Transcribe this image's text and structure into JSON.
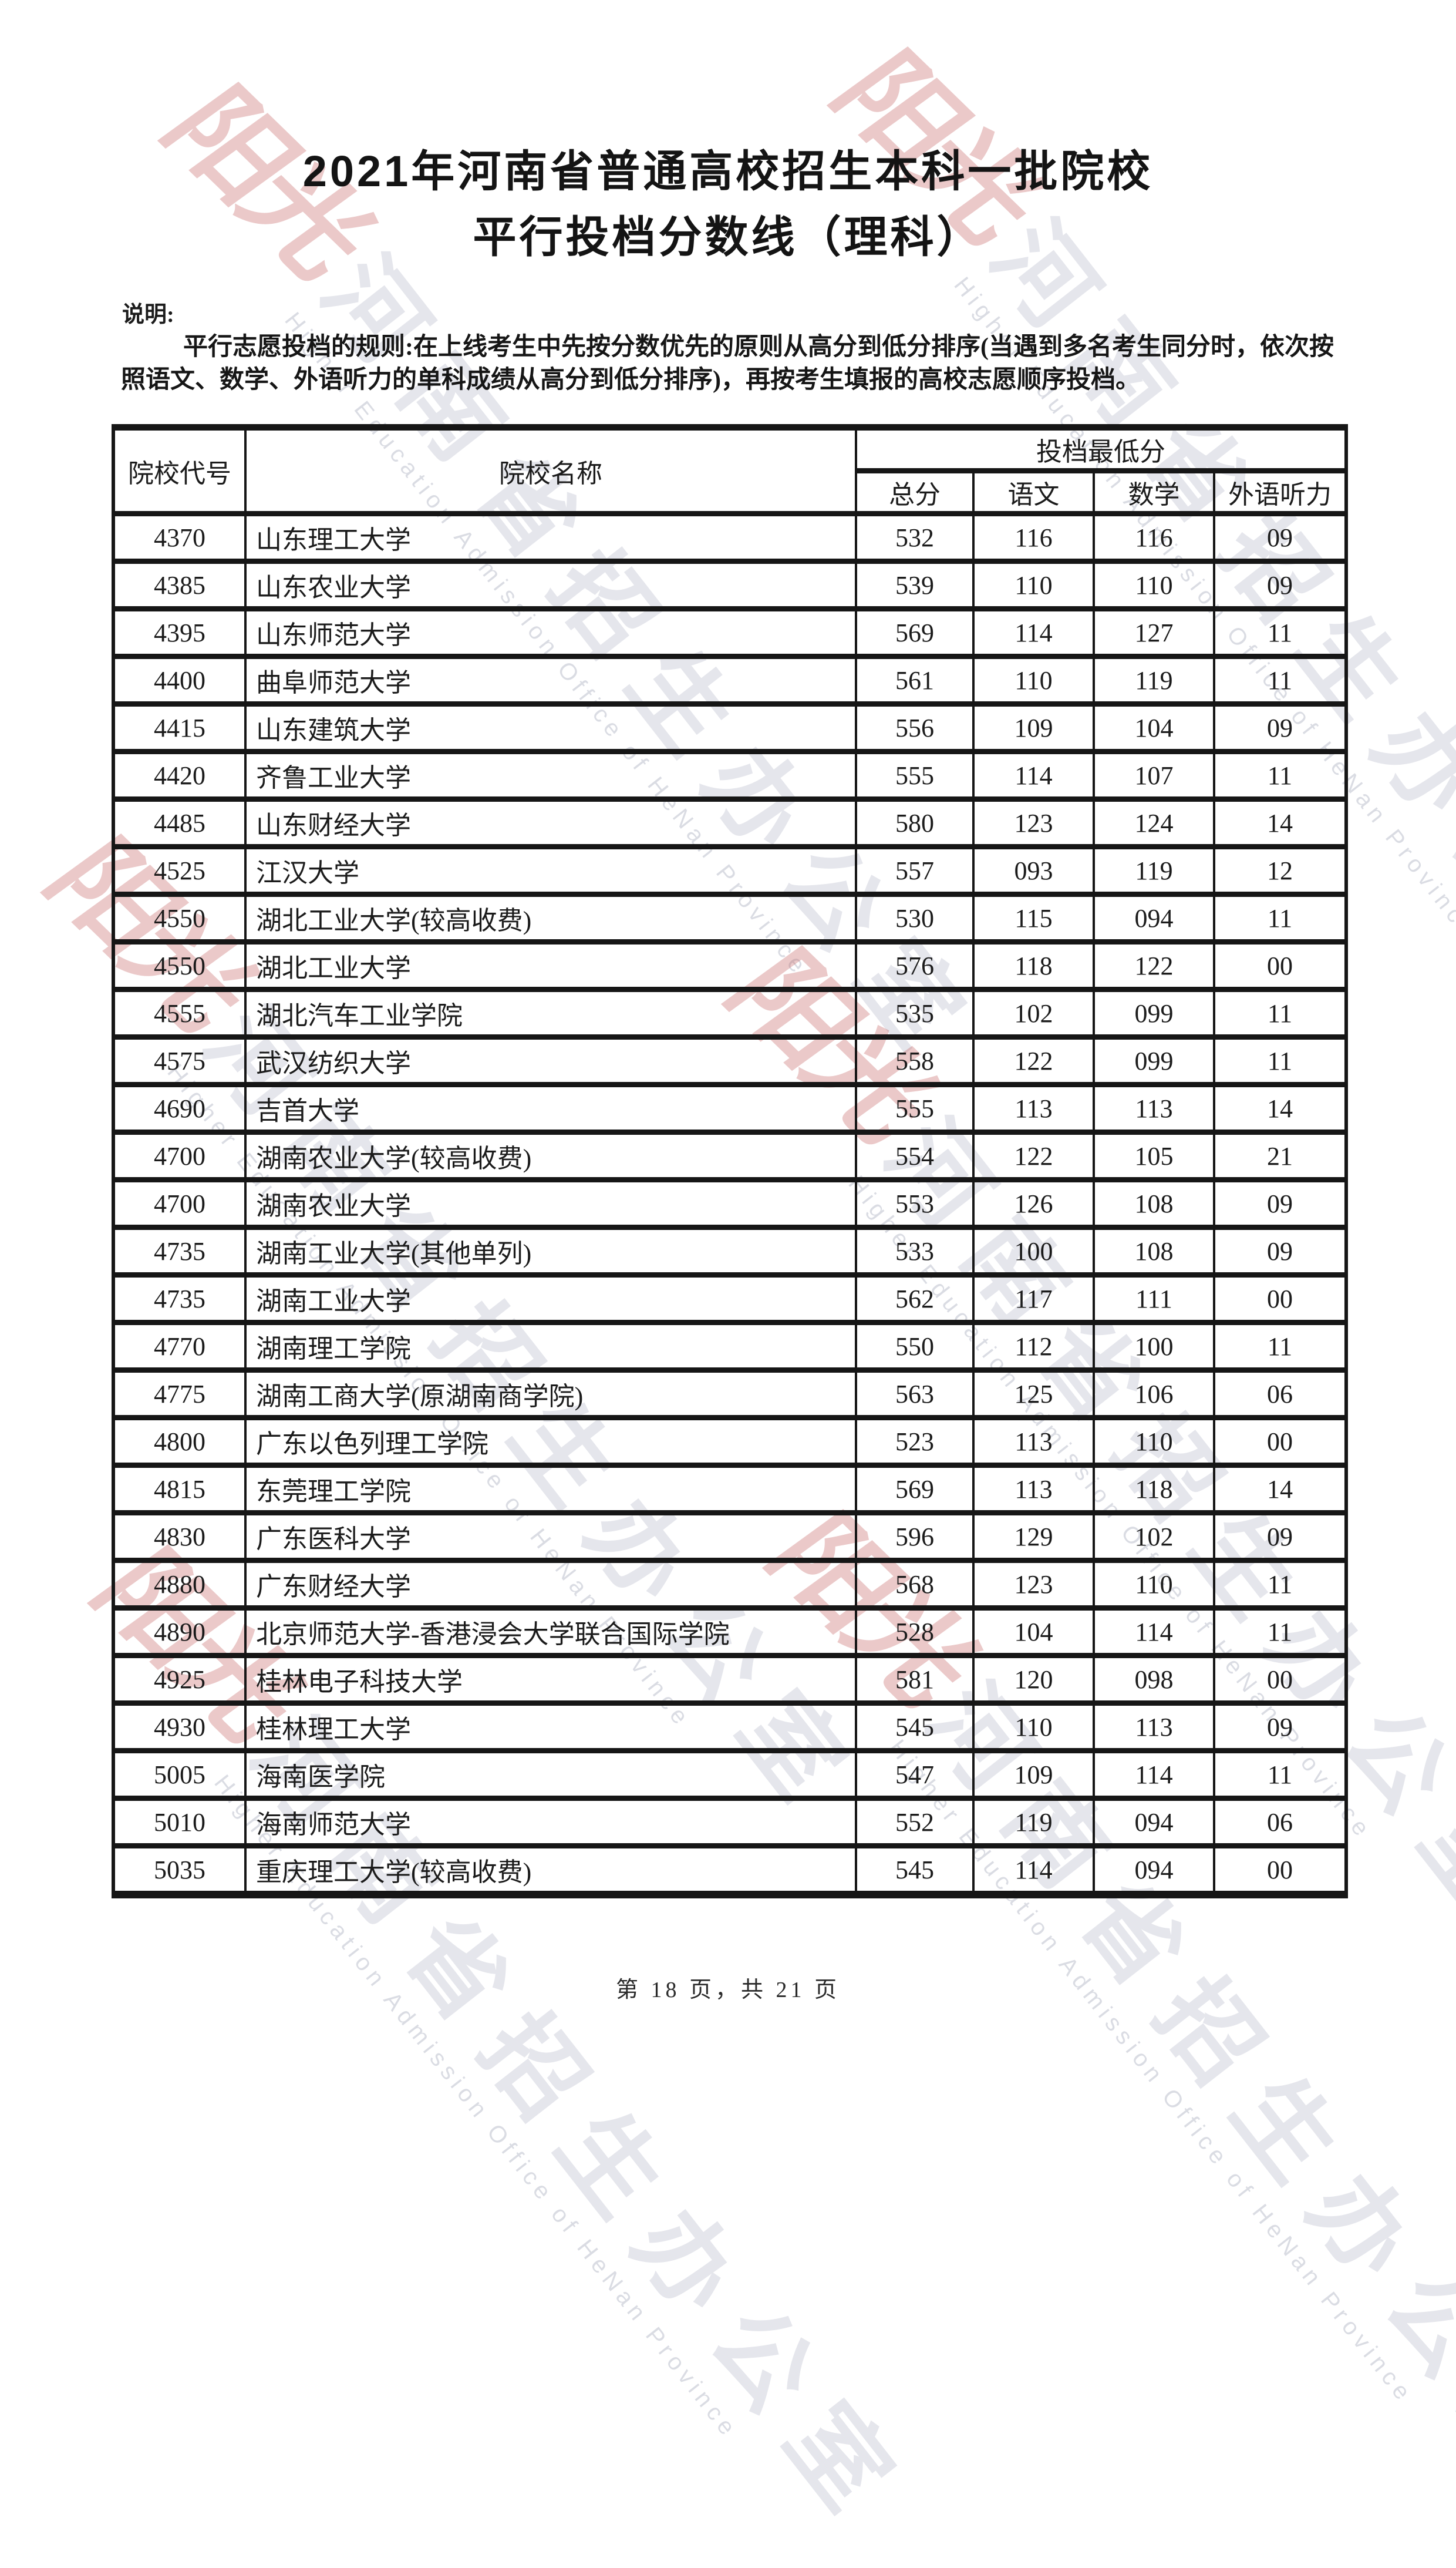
{
  "page": {
    "title_line1": "2021年河南省普通高校招生本科一批院校",
    "title_line2": "平行投档分数线（理科）",
    "note_label": "说明:",
    "note_line1": "平行志愿投档的规则:在上线考生中先按分数优先的原则从高分到低分排序(当遇到多名考生同分时，依次按",
    "note_line2": "照语文、数学、外语听力的单科成绩从高分到低分排序)，再按考生填报的高校志愿顺序投档。",
    "footer": "第 18 页，共 21 页"
  },
  "watermark": {
    "logo_text": "阳光",
    "cn_text": "河南省招生办公室",
    "en_text": "Higher Education Admission Office of HeNan Province"
  },
  "table": {
    "headers": {
      "col_code": "院校代号",
      "col_name": "院校名称",
      "col_group": "投档最低分",
      "col_total": "总分",
      "col_chinese": "语文",
      "col_math": "数学",
      "col_listening": "外语听力"
    },
    "rows": [
      {
        "code": "4370",
        "name": "山东理工大学",
        "total": "532",
        "chinese": "116",
        "math": "116",
        "listening": "09"
      },
      {
        "code": "4385",
        "name": "山东农业大学",
        "total": "539",
        "chinese": "110",
        "math": "110",
        "listening": "09"
      },
      {
        "code": "4395",
        "name": "山东师范大学",
        "total": "569",
        "chinese": "114",
        "math": "127",
        "listening": "11"
      },
      {
        "code": "4400",
        "name": "曲阜师范大学",
        "total": "561",
        "chinese": "110",
        "math": "119",
        "listening": "11"
      },
      {
        "code": "4415",
        "name": "山东建筑大学",
        "total": "556",
        "chinese": "109",
        "math": "104",
        "listening": "09"
      },
      {
        "code": "4420",
        "name": "齐鲁工业大学",
        "total": "555",
        "chinese": "114",
        "math": "107",
        "listening": "11"
      },
      {
        "code": "4485",
        "name": "山东财经大学",
        "total": "580",
        "chinese": "123",
        "math": "124",
        "listening": "14"
      },
      {
        "code": "4525",
        "name": "江汉大学",
        "total": "557",
        "chinese": "093",
        "math": "119",
        "listening": "12"
      },
      {
        "code": "4550",
        "name": "湖北工业大学(较高收费)",
        "total": "530",
        "chinese": "115",
        "math": "094",
        "listening": "11"
      },
      {
        "code": "4550",
        "name": "湖北工业大学",
        "total": "576",
        "chinese": "118",
        "math": "122",
        "listening": "00"
      },
      {
        "code": "4555",
        "name": "湖北汽车工业学院",
        "total": "535",
        "chinese": "102",
        "math": "099",
        "listening": "11"
      },
      {
        "code": "4575",
        "name": "武汉纺织大学",
        "total": "558",
        "chinese": "122",
        "math": "099",
        "listening": "11"
      },
      {
        "code": "4690",
        "name": "吉首大学",
        "total": "555",
        "chinese": "113",
        "math": "113",
        "listening": "14"
      },
      {
        "code": "4700",
        "name": "湖南农业大学(较高收费)",
        "total": "554",
        "chinese": "122",
        "math": "105",
        "listening": "21"
      },
      {
        "code": "4700",
        "name": "湖南农业大学",
        "total": "553",
        "chinese": "126",
        "math": "108",
        "listening": "09"
      },
      {
        "code": "4735",
        "name": "湖南工业大学(其他单列)",
        "total": "533",
        "chinese": "100",
        "math": "108",
        "listening": "09"
      },
      {
        "code": "4735",
        "name": "湖南工业大学",
        "total": "562",
        "chinese": "117",
        "math": "111",
        "listening": "00"
      },
      {
        "code": "4770",
        "name": "湖南理工学院",
        "total": "550",
        "chinese": "112",
        "math": "100",
        "listening": "11"
      },
      {
        "code": "4775",
        "name": "湖南工商大学(原湖南商学院)",
        "total": "563",
        "chinese": "125",
        "math": "106",
        "listening": "06"
      },
      {
        "code": "4800",
        "name": "广东以色列理工学院",
        "total": "523",
        "chinese": "113",
        "math": "110",
        "listening": "00"
      },
      {
        "code": "4815",
        "name": "东莞理工学院",
        "total": "569",
        "chinese": "113",
        "math": "118",
        "listening": "14"
      },
      {
        "code": "4830",
        "name": "广东医科大学",
        "total": "596",
        "chinese": "129",
        "math": "102",
        "listening": "09"
      },
      {
        "code": "4880",
        "name": "广东财经大学",
        "total": "568",
        "chinese": "123",
        "math": "110",
        "listening": "11"
      },
      {
        "code": "4890",
        "name": "北京师范大学-香港浸会大学联合国际学院",
        "total": "528",
        "chinese": "104",
        "math": "114",
        "listening": "11"
      },
      {
        "code": "4925",
        "name": "桂林电子科技大学",
        "total": "581",
        "chinese": "120",
        "math": "098",
        "listening": "00"
      },
      {
        "code": "4930",
        "name": "桂林理工大学",
        "total": "545",
        "chinese": "110",
        "math": "113",
        "listening": "09"
      },
      {
        "code": "5005",
        "name": "海南医学院",
        "total": "547",
        "chinese": "109",
        "math": "114",
        "listening": "11"
      },
      {
        "code": "5010",
        "name": "海南师范大学",
        "total": "552",
        "chinese": "119",
        "math": "094",
        "listening": "06"
      },
      {
        "code": "5035",
        "name": "重庆理工大学(较高收费)",
        "total": "545",
        "chinese": "114",
        "math": "094",
        "listening": "00"
      }
    ]
  }
}
